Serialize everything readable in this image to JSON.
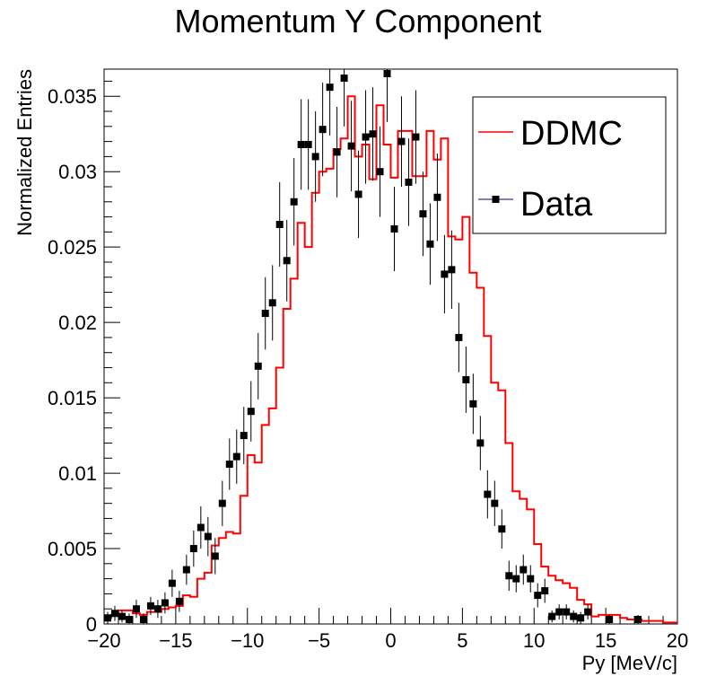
{
  "chart_data": {
    "type": "histogram",
    "title": "Momentum Y Component",
    "xlabel": "Py [MeV/c]",
    "ylabel": "Normalized Entries",
    "xlim": [
      -20,
      20
    ],
    "ylim": [
      0,
      0.0368
    ],
    "x_ticks": [
      -20,
      -15,
      -10,
      -5,
      0,
      5,
      10,
      15,
      20
    ],
    "x_tick_labels": [
      "−20",
      "−15",
      "−10",
      "−5",
      "0",
      "5",
      "10",
      "15",
      "20"
    ],
    "y_ticks": [
      0,
      0.005,
      0.01,
      0.015,
      0.02,
      0.025,
      0.03,
      0.035
    ],
    "y_tick_labels": [
      "0",
      "0.005",
      "0.01",
      "0.015",
      "0.02",
      "0.025",
      "0.03",
      "0.035"
    ],
    "legend_position": "top-right",
    "bin_edges_range": [
      -20,
      20
    ],
    "series": [
      {
        "name": "DDMC",
        "style": "step",
        "color": "#ff0000",
        "values": [
          0.0004,
          0.0006,
          0.0009,
          0.0009,
          0.0007,
          0.0006,
          0.0008,
          0.0008,
          0.001,
          0.0011,
          0.0012,
          0.0019,
          0.0018,
          0.003,
          0.0034,
          0.0052,
          0.0057,
          0.0061,
          0.006,
          0.0085,
          0.0112,
          0.0107,
          0.0132,
          0.0143,
          0.017,
          0.0209,
          0.0229,
          0.0266,
          0.025,
          0.0286,
          0.03,
          0.0302,
          0.0315,
          0.0322,
          0.035,
          0.031,
          0.0318,
          0.0295,
          0.0344,
          0.0318,
          0.0296,
          0.0327,
          0.0327,
          0.0297,
          0.0297,
          0.0327,
          0.0308,
          0.0322,
          0.0257,
          0.0255,
          0.027,
          0.0233,
          0.0223,
          0.0191,
          0.016,
          0.0155,
          0.012,
          0.0088,
          0.0083,
          0.0076,
          0.0053,
          0.0038,
          0.0032,
          0.0029,
          0.0027,
          0.0024,
          0.0016,
          0.0013,
          0.0005,
          0.0006,
          0.0006,
          0.0006,
          0.0004,
          0.0003,
          0.0003,
          0.0002,
          0.0002,
          0.0002,
          0.0001,
          0.0001
        ]
      },
      {
        "name": "Data",
        "style": "points",
        "color": "#000000",
        "x": [
          -19.75,
          -19.25,
          -18.75,
          -18.25,
          -17.75,
          -17.25,
          -16.75,
          -16.25,
          -15.75,
          -15.25,
          -14.75,
          -14.25,
          -13.75,
          -13.25,
          -12.75,
          -12.25,
          -11.75,
          -11.25,
          -10.75,
          -10.25,
          -9.75,
          -9.25,
          -8.75,
          -8.25,
          -7.75,
          -7.25,
          -6.75,
          -6.25,
          -5.75,
          -5.25,
          -4.75,
          -4.25,
          -3.75,
          -3.25,
          -2.75,
          -2.25,
          -1.75,
          -1.25,
          -0.75,
          -0.25,
          0.25,
          0.75,
          1.25,
          1.75,
          2.25,
          2.75,
          3.25,
          3.75,
          4.25,
          4.75,
          5.25,
          5.75,
          6.25,
          6.75,
          7.25,
          7.75,
          8.25,
          8.75,
          9.25,
          9.75,
          10.25,
          10.75,
          11.25,
          11.75,
          12.25,
          12.75,
          13.25,
          13.75,
          15.25,
          17.25
        ],
        "y": [
          0.0004,
          0.0007,
          0.0005,
          0.0003,
          0.001,
          0.0003,
          0.0012,
          0.001,
          0.0014,
          0.0027,
          0.0015,
          0.0036,
          0.005,
          0.0064,
          0.0058,
          0.0045,
          0.008,
          0.0106,
          0.0111,
          0.0125,
          0.0141,
          0.0171,
          0.0206,
          0.0213,
          0.0265,
          0.0241,
          0.028,
          0.0318,
          0.0318,
          0.031,
          0.0328,
          0.0356,
          0.0313,
          0.0362,
          0.0317,
          0.0285,
          0.0323,
          0.0325,
          0.03,
          0.0365,
          0.0262,
          0.032,
          0.0293,
          0.0323,
          0.0272,
          0.0252,
          0.0283,
          0.0232,
          0.0235,
          0.019,
          0.0162,
          0.0146,
          0.012,
          0.0086,
          0.008,
          0.0063,
          0.0032,
          0.003,
          0.0036,
          0.003,
          0.0019,
          0.0022,
          0.0005,
          0.0008,
          0.0008,
          0.0005,
          0.0004,
          0.0008,
          0.0003,
          0.0003
        ],
        "errors": [
          0.0004,
          0.0005,
          0.0004,
          0.0004,
          0.0006,
          0.0004,
          0.0006,
          0.0006,
          0.0007,
          0.0009,
          0.0007,
          0.001,
          0.0012,
          0.0014,
          0.0013,
          0.0012,
          0.0015,
          0.0017,
          0.0018,
          0.0019,
          0.002,
          0.0022,
          0.0024,
          0.0025,
          0.0028,
          0.0027,
          0.0029,
          0.003,
          0.003,
          0.003,
          0.0031,
          0.0032,
          0.003,
          0.0032,
          0.003,
          0.0029,
          0.0031,
          0.0031,
          0.003,
          0.0032,
          0.0028,
          0.003,
          0.0029,
          0.0031,
          0.0028,
          0.0027,
          0.0029,
          0.0026,
          0.0026,
          0.0023,
          0.0022,
          0.002,
          0.0018,
          0.0016,
          0.0015,
          0.0013,
          0.001,
          0.0009,
          0.001,
          0.0009,
          0.0008,
          0.0008,
          0.0004,
          0.0005,
          0.0005,
          0.0004,
          0.0004,
          0.0005,
          0.0003,
          0.0003
        ]
      }
    ]
  }
}
